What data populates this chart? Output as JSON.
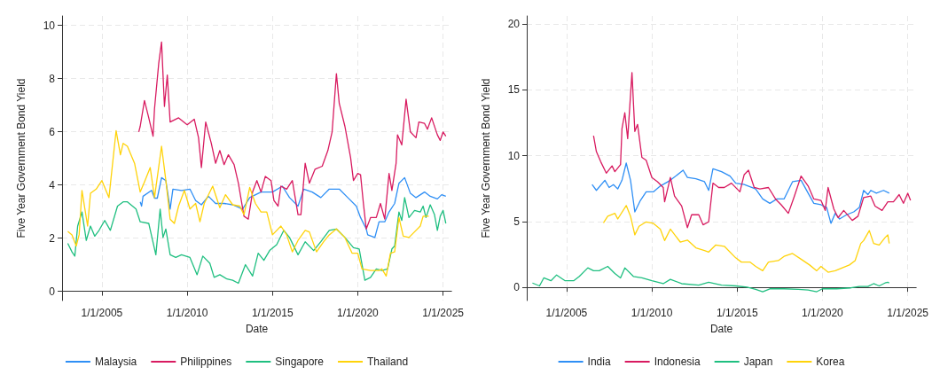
{
  "chart_data": [
    {
      "type": "line",
      "xlabel": "Date",
      "ylabel": "Five Year Government Bond Yield",
      "xlim": [
        "2002-09",
        "2025-07"
      ],
      "xticks": [
        {
          "value": "2005-01-01",
          "label": "1/1/2005"
        },
        {
          "value": "2010-01-01",
          "label": "1/1/2010"
        },
        {
          "value": "2015-01-01",
          "label": "1/1/2015"
        },
        {
          "value": "2020-01-01",
          "label": "1/1/2020"
        },
        {
          "value": "2025-01-01",
          "label": "1/1/2025"
        }
      ],
      "ylim": [
        -0.35,
        10.35
      ],
      "yticks": [
        0,
        2,
        4,
        6,
        8,
        10
      ],
      "grid": true,
      "legend": "bottom",
      "series": [
        {
          "name": "Malaysia",
          "color": "#2f8ff5",
          "x": [
            "2007-04",
            "2007-05",
            "2007-06",
            "2007-12",
            "2008-02",
            "2008-04",
            "2008-07",
            "2008-10",
            "2009-01",
            "2009-03",
            "2009-09",
            "2010-03",
            "2010-07",
            "2010-11",
            "2011-04",
            "2011-09",
            "2012-03",
            "2012-09",
            "2013-04",
            "2013-09",
            "2014-05",
            "2015-01",
            "2015-08",
            "2016-01",
            "2016-07",
            "2016-11",
            "2017-05",
            "2017-11",
            "2018-05",
            "2018-12",
            "2019-06",
            "2019-12",
            "2020-03",
            "2020-07",
            "2020-08",
            "2021-01",
            "2021-04",
            "2021-08",
            "2021-11",
            "2022-03",
            "2022-06",
            "2022-10",
            "2023-02",
            "2023-06",
            "2023-12",
            "2024-04",
            "2024-09",
            "2024-12",
            "2025-03"
          ],
          "values": [
            3.36,
            3.2,
            3.57,
            3.79,
            3.5,
            3.5,
            4.27,
            4.16,
            3.09,
            3.84,
            3.79,
            3.84,
            3.41,
            3.25,
            3.57,
            3.3,
            3.3,
            3.25,
            3.09,
            3.52,
            3.73,
            3.73,
            3.95,
            3.52,
            3.2,
            3.84,
            3.73,
            3.52,
            3.84,
            3.84,
            3.52,
            3.2,
            2.77,
            2.34,
            2.12,
            2.02,
            2.61,
            2.61,
            2.98,
            3.3,
            4.06,
            4.27,
            3.68,
            3.52,
            3.73,
            3.57,
            3.47,
            3.63,
            3.57
          ]
        },
        {
          "name": "Philippines",
          "color": "#d81b60",
          "x": [
            "2007-03",
            "2007-04",
            "2007-07",
            "2007-10",
            "2008-01",
            "2008-02",
            "2008-05",
            "2008-07",
            "2008-09",
            "2008-11",
            "2009-01",
            "2009-07",
            "2010-01",
            "2010-06",
            "2010-09",
            "2010-11",
            "2011-02",
            "2011-06",
            "2011-09",
            "2011-12",
            "2012-03",
            "2012-06",
            "2012-10",
            "2013-01",
            "2013-05",
            "2013-08",
            "2013-11",
            "2014-02",
            "2014-05",
            "2014-08",
            "2014-12",
            "2015-02",
            "2015-05",
            "2015-07",
            "2015-11",
            "2016-03",
            "2016-07",
            "2016-09",
            "2016-12",
            "2017-03",
            "2017-07",
            "2017-12",
            "2018-04",
            "2018-07",
            "2018-10",
            "2018-12",
            "2019-04",
            "2019-08",
            "2019-10",
            "2020-01",
            "2020-03",
            "2020-05",
            "2020-07",
            "2020-10",
            "2021-02",
            "2021-05",
            "2021-08",
            "2021-11",
            "2022-01",
            "2022-04",
            "2022-05",
            "2022-08",
            "2022-11",
            "2023-02",
            "2023-06",
            "2023-08",
            "2023-12",
            "2024-02",
            "2024-05",
            "2024-09",
            "2024-11",
            "2025-01",
            "2025-03"
          ],
          "values": [
            5.99,
            6.2,
            7.17,
            6.52,
            5.83,
            6.85,
            8.56,
            9.37,
            6.95,
            8.13,
            6.36,
            6.52,
            6.26,
            6.47,
            5.77,
            4.65,
            6.36,
            5.56,
            4.81,
            5.29,
            4.76,
            5.13,
            4.76,
            4.06,
            2.82,
            2.71,
            3.73,
            4.16,
            3.73,
            4.32,
            4.16,
            3.41,
            3.2,
            3.95,
            3.84,
            4.16,
            2.88,
            2.88,
            4.81,
            4.06,
            4.59,
            4.7,
            5.29,
            5.99,
            8.18,
            7.06,
            6.2,
            5.02,
            4.16,
            4.43,
            4.38,
            3.3,
            2.34,
            2.77,
            2.77,
            3.3,
            2.71,
            4.43,
            3.79,
            4.81,
            5.88,
            5.5,
            7.22,
            5.99,
            5.77,
            6.36,
            6.31,
            6.09,
            6.52,
            5.88,
            5.67,
            5.99,
            5.83
          ]
        },
        {
          "name": "Singapore",
          "color": "#1fbf80",
          "x": [
            "2003-01",
            "2003-04",
            "2003-06",
            "2003-08",
            "2003-11",
            "2004-02",
            "2004-05",
            "2004-08",
            "2004-11",
            "2005-03",
            "2005-07",
            "2005-12",
            "2006-04",
            "2006-07",
            "2007-01",
            "2007-04",
            "2007-10",
            "2008-03",
            "2008-06",
            "2008-08",
            "2008-10",
            "2009-01",
            "2009-05",
            "2009-09",
            "2010-03",
            "2010-08",
            "2010-12",
            "2011-05",
            "2011-08",
            "2011-12",
            "2012-05",
            "2012-09",
            "2013-01",
            "2013-06",
            "2013-11",
            "2014-03",
            "2014-07",
            "2014-11",
            "2015-04",
            "2015-09",
            "2016-01",
            "2016-07",
            "2016-12",
            "2017-06",
            "2017-11",
            "2018-05",
            "2018-10",
            "2019-04",
            "2019-10",
            "2020-02",
            "2020-06",
            "2020-10",
            "2021-02",
            "2021-06",
            "2021-10",
            "2022-01",
            "2022-03",
            "2022-06",
            "2022-08",
            "2022-10",
            "2023-01",
            "2023-05",
            "2023-09",
            "2023-11",
            "2024-01",
            "2024-04",
            "2024-07",
            "2024-09",
            "2024-11",
            "2025-01",
            "2025-03"
          ],
          "values": [
            1.8,
            1.48,
            1.32,
            2.45,
            2.98,
            1.91,
            2.45,
            2.07,
            2.29,
            2.66,
            2.29,
            3.2,
            3.36,
            3.36,
            3.09,
            2.61,
            2.55,
            1.37,
            3.09,
            2.02,
            2.34,
            1.37,
            1.27,
            1.37,
            1.27,
            0.62,
            1.32,
            1.05,
            0.52,
            0.62,
            0.46,
            0.41,
            0.3,
            1.0,
            0.57,
            1.43,
            1.16,
            1.53,
            1.75,
            2.29,
            2.02,
            1.37,
            1.86,
            1.53,
            1.86,
            2.29,
            2.34,
            2.02,
            1.64,
            1.59,
            0.41,
            0.52,
            0.84,
            0.78,
            0.84,
            1.59,
            1.7,
            2.98,
            2.66,
            3.52,
            2.77,
            3.04,
            2.98,
            3.2,
            2.77,
            3.25,
            2.88,
            2.29,
            2.82,
            3.04,
            2.55
          ]
        },
        {
          "name": "Thailand",
          "color": "#ffd30a",
          "x": [
            "2003-01",
            "2003-04",
            "2003-07",
            "2003-09",
            "2003-11",
            "2004-03",
            "2004-05",
            "2004-09",
            "2005-01",
            "2005-06",
            "2005-11",
            "2006-02",
            "2006-04",
            "2006-07",
            "2006-12",
            "2007-04",
            "2007-07",
            "2007-11",
            "2008-02",
            "2008-07",
            "2008-10",
            "2009-01",
            "2009-04",
            "2009-07",
            "2009-11",
            "2010-03",
            "2010-07",
            "2010-10",
            "2011-01",
            "2011-07",
            "2011-12",
            "2012-04",
            "2012-09",
            "2013-02",
            "2013-05",
            "2013-09",
            "2014-01",
            "2014-05",
            "2014-09",
            "2015-01",
            "2015-07",
            "2015-11",
            "2016-03",
            "2016-07",
            "2016-12",
            "2017-03",
            "2017-08",
            "2018-01",
            "2018-05",
            "2018-10",
            "2019-04",
            "2019-09",
            "2020-01",
            "2020-04",
            "2020-10",
            "2021-04",
            "2021-06",
            "2021-09",
            "2021-12",
            "2022-03",
            "2022-06",
            "2022-09",
            "2023-01",
            "2023-04",
            "2023-09",
            "2023-11",
            "2024-03"
          ],
          "values": [
            2.25,
            2.12,
            1.7,
            2.12,
            3.79,
            2.45,
            3.68,
            3.84,
            4.16,
            3.52,
            6.04,
            5.13,
            5.56,
            5.45,
            4.81,
            3.73,
            4.11,
            4.65,
            3.52,
            5.45,
            4.16,
            2.71,
            2.55,
            3.2,
            3.79,
            3.09,
            3.3,
            2.61,
            3.3,
            3.95,
            3.14,
            3.63,
            3.25,
            3.2,
            2.88,
            3.9,
            3.3,
            2.98,
            2.98,
            2.12,
            2.45,
            2.12,
            1.48,
            1.91,
            2.29,
            2.23,
            1.48,
            1.86,
            2.12,
            2.34,
            2.02,
            1.43,
            1.43,
            0.84,
            0.78,
            0.78,
            0.84,
            0.57,
            1.43,
            1.48,
            2.77,
            2.07,
            2.02,
            2.18,
            2.45,
            2.82,
            2.82
          ]
        }
      ]
    },
    {
      "type": "line",
      "xlabel": "Date",
      "ylabel": "Five Year Government Bond Yield",
      "xlim": [
        "2002-09",
        "2025-07"
      ],
      "xticks": [
        {
          "value": "2005-01-01",
          "label": "1/1/2005"
        },
        {
          "value": "2010-01-01",
          "label": "1/1/2010"
        },
        {
          "value": "2015-01-01",
          "label": "1/1/2015"
        },
        {
          "value": "2020-01-01",
          "label": "1/1/2020"
        },
        {
          "value": "2025-01-01",
          "label": "1/1/2025"
        }
      ],
      "ylim": [
        -1,
        20.6
      ],
      "yticks": [
        0,
        5,
        10,
        15,
        20
      ],
      "grid": true,
      "legend": "bottom",
      "series": [
        {
          "name": "India",
          "color": "#2f8ff5",
          "x": [
            "2006-07",
            "2006-10",
            "2007-04",
            "2007-07",
            "2007-10",
            "2008-01",
            "2008-04",
            "2008-07",
            "2008-10",
            "2009-01",
            "2009-05",
            "2009-09",
            "2010-02",
            "2010-07",
            "2011-02",
            "2011-11",
            "2012-02",
            "2012-08",
            "2013-02",
            "2013-05",
            "2013-08",
            "2014-02",
            "2014-08",
            "2014-12",
            "2015-06",
            "2016-02",
            "2016-07",
            "2016-12",
            "2017-05",
            "2017-10",
            "2018-04",
            "2018-10",
            "2019-03",
            "2019-07",
            "2019-12",
            "2020-04",
            "2020-07",
            "2020-10",
            "2021-01",
            "2021-06",
            "2021-11",
            "2022-03",
            "2022-06",
            "2022-09",
            "2022-11",
            "2023-03",
            "2023-08",
            "2023-12"
          ],
          "values": [
            7.8,
            7.36,
            8.13,
            7.58,
            7.8,
            7.47,
            8.13,
            9.43,
            8.13,
            5.73,
            6.6,
            7.25,
            7.25,
            7.69,
            8.13,
            8.89,
            8.34,
            8.24,
            8.02,
            7.36,
            9.0,
            8.78,
            8.45,
            7.91,
            7.8,
            7.47,
            6.71,
            6.38,
            6.71,
            6.71,
            8.02,
            8.13,
            7.15,
            6.38,
            6.27,
            6.06,
            4.86,
            5.62,
            5.19,
            5.51,
            5.73,
            6.06,
            7.36,
            7.04,
            7.36,
            7.15,
            7.36,
            7.15
          ]
        },
        {
          "name": "Indonesia",
          "color": "#d81b60",
          "x": [
            "2006-08",
            "2006-10",
            "2007-01",
            "2007-05",
            "2007-09",
            "2007-11",
            "2008-03",
            "2008-04",
            "2008-06",
            "2008-08",
            "2008-11",
            "2009-01",
            "2009-03",
            "2009-06",
            "2009-09",
            "2010-01",
            "2010-05",
            "2010-09",
            "2010-10",
            "2011-02",
            "2011-05",
            "2011-10",
            "2012-02",
            "2012-05",
            "2012-10",
            "2013-01",
            "2013-05",
            "2013-08",
            "2013-12",
            "2014-04",
            "2014-09",
            "2015-03",
            "2015-06",
            "2015-09",
            "2016-01",
            "2016-05",
            "2016-11",
            "2017-04",
            "2017-08",
            "2018-01",
            "2018-05",
            "2018-10",
            "2019-03",
            "2019-07",
            "2019-12",
            "2020-03",
            "2020-05",
            "2020-09",
            "2020-12",
            "2021-04",
            "2021-10",
            "2022-02",
            "2022-06",
            "2022-11",
            "2023-02",
            "2023-07",
            "2023-11",
            "2024-03",
            "2024-07",
            "2024-10",
            "2025-01",
            "2025-03"
          ],
          "values": [
            11.5,
            10.3,
            9.54,
            8.67,
            9.22,
            8.78,
            9.32,
            12.05,
            13.25,
            11.29,
            16.3,
            11.83,
            12.37,
            9.87,
            9.65,
            8.34,
            8.02,
            7.58,
            6.49,
            8.34,
            6.93,
            6.17,
            4.53,
            5.51,
            5.51,
            4.75,
            4.97,
            7.91,
            7.58,
            7.58,
            7.91,
            7.25,
            8.56,
            8.89,
            7.58,
            7.47,
            7.58,
            6.71,
            6.27,
            5.62,
            6.82,
            8.45,
            7.69,
            6.71,
            6.6,
            5.84,
            7.58,
            5.95,
            5.29,
            5.84,
            5.08,
            5.4,
            6.82,
            6.93,
            6.17,
            5.84,
            6.49,
            6.49,
            7.04,
            6.38,
            7.15,
            6.6
          ]
        },
        {
          "name": "Japan",
          "color": "#1fbf80",
          "x": [
            "2003-01",
            "2003-06",
            "2003-09",
            "2004-02",
            "2004-06",
            "2004-12",
            "2005-06",
            "2005-10",
            "2006-04",
            "2006-08",
            "2006-12",
            "2007-06",
            "2007-11",
            "2008-03",
            "2008-06",
            "2008-12",
            "2009-06",
            "2010-01",
            "2010-09",
            "2011-02",
            "2011-10",
            "2012-10",
            "2013-05",
            "2014-02",
            "2014-12",
            "2015-08",
            "2016-02",
            "2016-07",
            "2016-12",
            "2017-10",
            "2018-08",
            "2019-03",
            "2019-09",
            "2020-01",
            "2020-11",
            "2021-09",
            "2022-03",
            "2022-09",
            "2023-01",
            "2023-05",
            "2023-09",
            "2023-11",
            "2023-12"
          ],
          "values": [
            0.33,
            0.11,
            0.72,
            0.5,
            0.94,
            0.5,
            0.5,
            0.83,
            1.48,
            1.26,
            1.26,
            1.59,
            1.05,
            0.72,
            1.48,
            0.83,
            0.72,
            0.5,
            0.28,
            0.61,
            0.28,
            0.17,
            0.39,
            0.17,
            0.11,
            0.02,
            -0.15,
            -0.33,
            -0.11,
            -0.11,
            -0.15,
            -0.2,
            -0.33,
            -0.11,
            -0.11,
            -0.04,
            0.07,
            0.07,
            0.28,
            0.11,
            0.33,
            0.39,
            0.33
          ]
        },
        {
          "name": "Korea",
          "color": "#ffd30a",
          "x": [
            "2007-03",
            "2007-06",
            "2007-11",
            "2008-01",
            "2008-07",
            "2008-10",
            "2009-01",
            "2009-04",
            "2009-09",
            "2010-02",
            "2010-07",
            "2010-10",
            "2011-02",
            "2011-09",
            "2012-02",
            "2012-08",
            "2013-02",
            "2013-05",
            "2013-10",
            "2014-04",
            "2014-12",
            "2015-04",
            "2015-10",
            "2016-02",
            "2016-07",
            "2016-11",
            "2017-06",
            "2017-10",
            "2018-04",
            "2018-10",
            "2019-04",
            "2019-09",
            "2019-12",
            "2020-05",
            "2020-10",
            "2021-03",
            "2021-08",
            "2021-12",
            "2022-04",
            "2022-06",
            "2022-10",
            "2023-01",
            "2023-05",
            "2023-09",
            "2023-11",
            "2023-12"
          ],
          "values": [
            4.9,
            5.4,
            5.62,
            5.19,
            6.21,
            5.4,
            3.99,
            4.64,
            4.97,
            4.86,
            4.42,
            3.55,
            4.42,
            3.44,
            3.59,
            3.0,
            2.79,
            2.68,
            3.22,
            3.12,
            2.24,
            1.92,
            1.92,
            1.59,
            1.26,
            1.92,
            2.03,
            2.35,
            2.57,
            2.14,
            1.7,
            1.26,
            1.59,
            1.15,
            1.26,
            1.48,
            1.7,
            2.03,
            3.33,
            3.55,
            4.31,
            3.33,
            3.22,
            3.77,
            3.99,
            3.33
          ]
        }
      ]
    }
  ]
}
